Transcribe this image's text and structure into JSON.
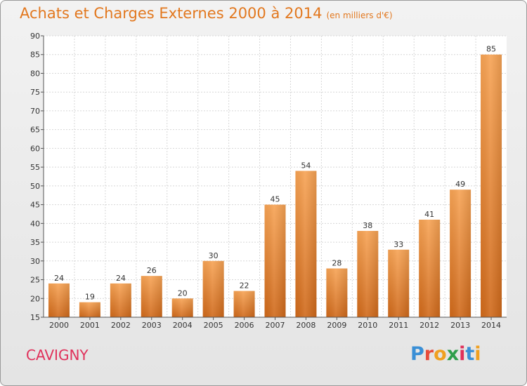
{
  "header": {
    "title": "Achats et Charges Externes 2000 à 2014",
    "subtitle": "(en milliers d'€)"
  },
  "footer": {
    "city": "CAVIGNY",
    "logo": [
      "P",
      "r",
      "o",
      "x",
      "i",
      "t",
      "i"
    ]
  },
  "colors": {
    "bar_light": "#f7a354",
    "bar_dark": "#d0691a",
    "title": "#e2781f",
    "city": "#e0305a"
  },
  "chart_data": {
    "type": "bar",
    "title": "Achats et Charges Externes 2000 à 2014",
    "subtitle": "(en milliers d'€)",
    "categories": [
      "2000",
      "2001",
      "2002",
      "2003",
      "2004",
      "2005",
      "2006",
      "2007",
      "2008",
      "2009",
      "2010",
      "2011",
      "2012",
      "2013",
      "2014"
    ],
    "values": [
      24,
      19,
      24,
      26,
      20,
      30,
      22,
      45,
      54,
      28,
      38,
      33,
      41,
      49,
      85
    ],
    "ylim": [
      15,
      90
    ],
    "yticks": [
      15,
      20,
      25,
      30,
      35,
      40,
      45,
      50,
      55,
      60,
      65,
      70,
      75,
      80,
      85,
      90
    ],
    "grid": true,
    "show_data_labels": true
  }
}
